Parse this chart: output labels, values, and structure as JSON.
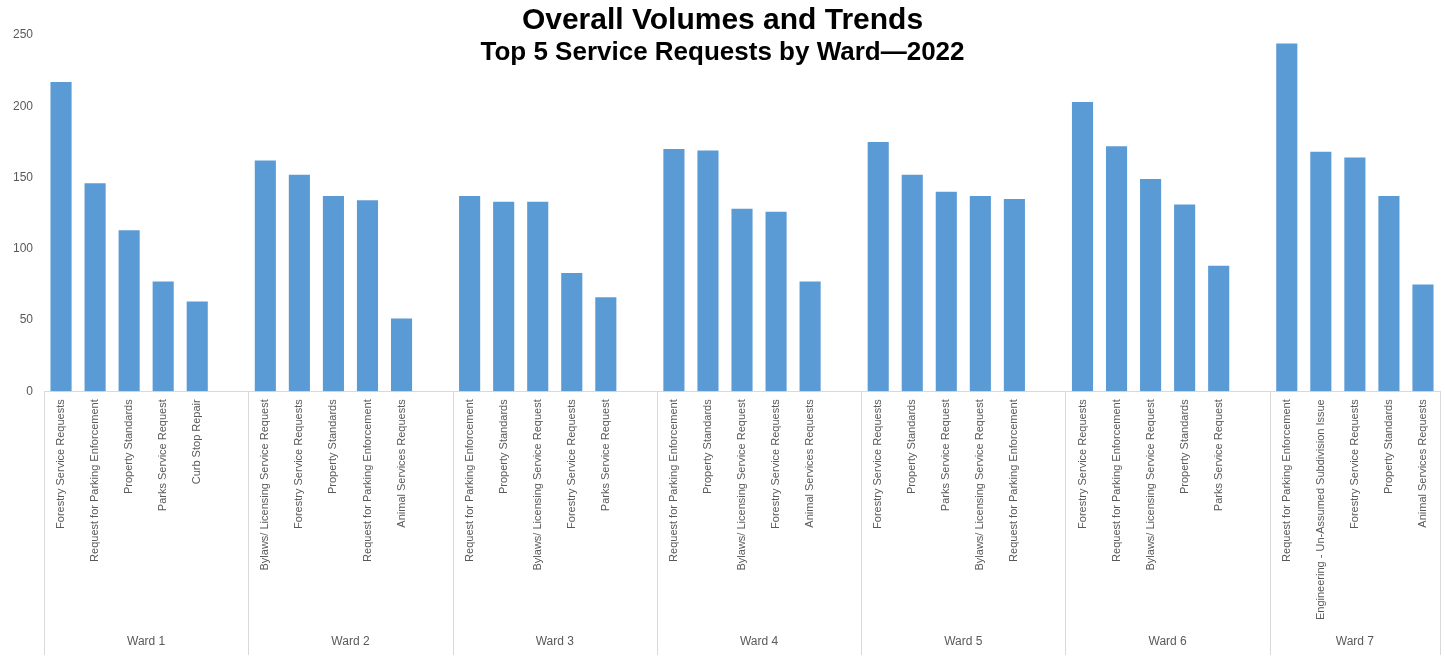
{
  "chart_data": {
    "type": "bar",
    "title": "Overall Volumes and Trends",
    "subtitle": "Top 5 Service Requests by Ward—2022",
    "categories": [
      "Forestry Service Requests",
      "Request for Parking Enforcement",
      "Property Standards",
      "Parks Service Request",
      "Curb Stop Repair",
      null,
      "Bylaws/ Licensing Service Request",
      "Forestry Service Requests",
      "Property Standards",
      "Request for Parking Enforcement",
      "Animal Services Requests",
      null,
      "Request for Parking Enforcement",
      "Property Standards",
      "Bylaws/ Licensing Service Request",
      "Forestry Service Requests",
      "Parks Service Request",
      null,
      "Request for Parking Enforcement",
      "Property Standards",
      "Bylaws/ Licensing Service Request",
      "Forestry Service Requests",
      "Animal Services Requests",
      null,
      "Forestry Service Requests",
      "Property Standards",
      "Parks Service Request",
      "Bylaws/ Licensing Service Request",
      "Request for Parking Enforcement",
      null,
      "Forestry Service Requests",
      "Request for Parking Enforcement",
      "Bylaws/ Licensing Service Request",
      "Property Standards",
      "Parks Service Request",
      null,
      "Request for Parking Enforcement",
      "Engineering - Un-Assumed Subdivision Issue",
      "Forestry Service Requests",
      "Property Standards",
      "Animal Services Requests"
    ],
    "values": [
      217,
      146,
      113,
      77,
      63,
      null,
      162,
      152,
      137,
      134,
      51,
      null,
      137,
      133,
      133,
      83,
      66,
      null,
      170,
      169,
      128,
      126,
      77,
      null,
      175,
      152,
      140,
      137,
      135,
      null,
      203,
      172,
      149,
      131,
      88,
      null,
      244,
      168,
      164,
      137,
      75
    ],
    "color": "#5b9bd5",
    "ylim": [
      0,
      250
    ],
    "yticks": [
      0,
      50,
      100,
      150,
      200,
      250
    ],
    "grid": false,
    "legend": false,
    "annotations": [
      "Ward 1",
      "Ward 2",
      "Ward 3",
      "Ward 4",
      "Ward 5",
      "Ward 6",
      "Ward 7"
    ]
  }
}
